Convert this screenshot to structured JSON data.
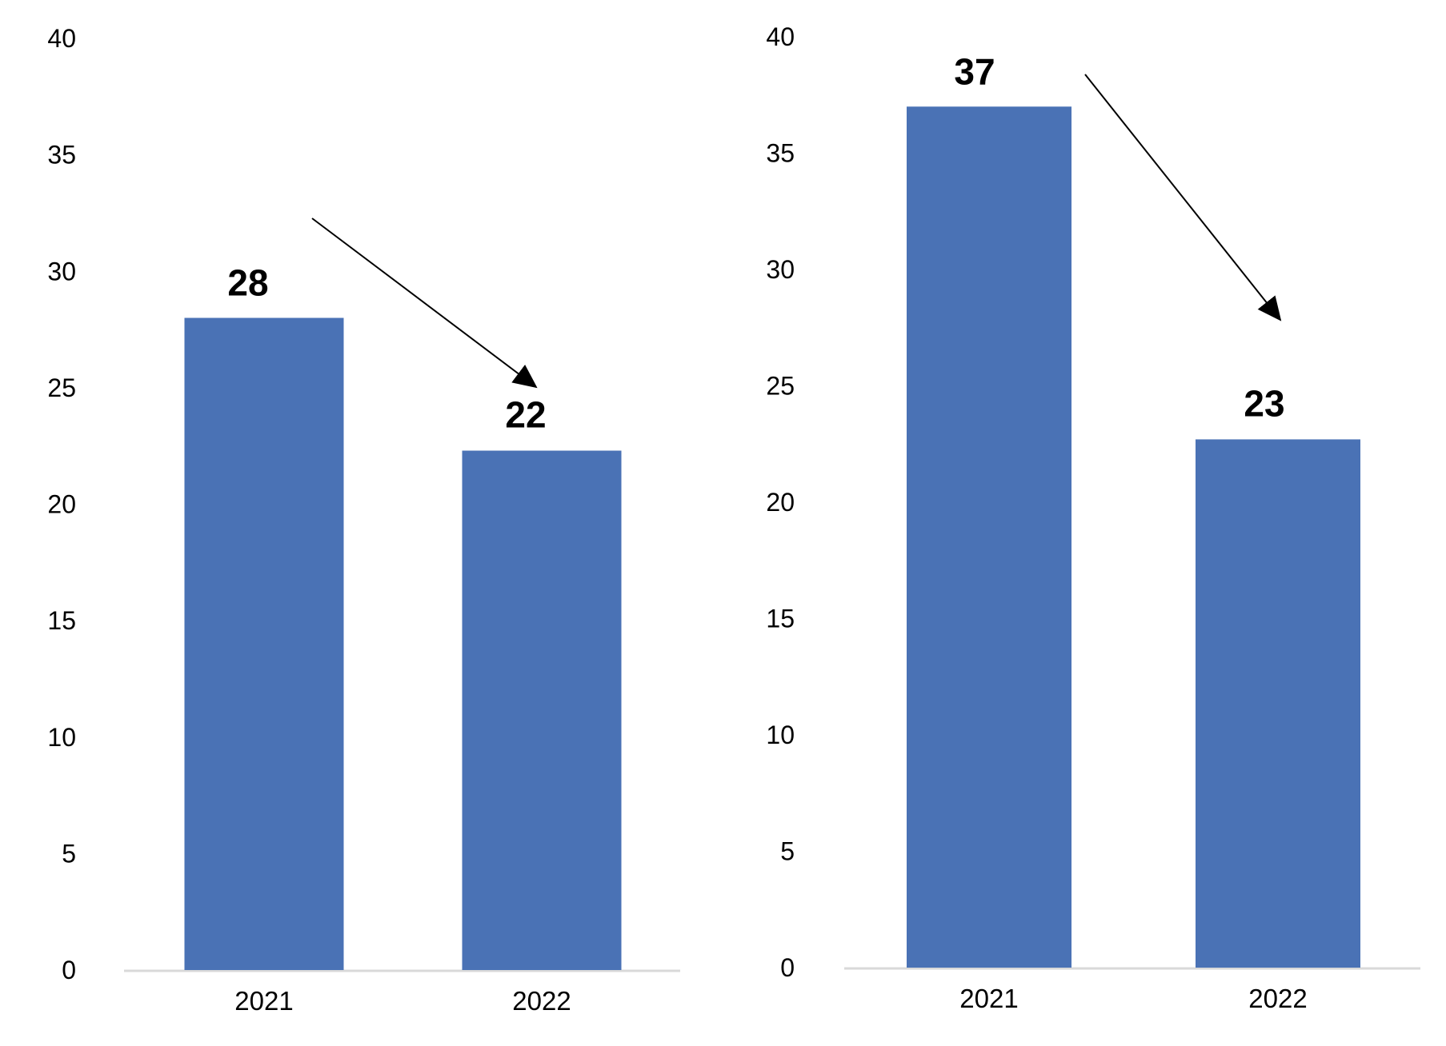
{
  "chart_data": [
    {
      "type": "bar",
      "categories": [
        "2021",
        "2022"
      ],
      "values": [
        28,
        22.3
      ],
      "data_labels": [
        "28",
        "22"
      ],
      "yticks": [
        "0",
        "5",
        "10",
        "15",
        "20",
        "25",
        "30",
        "35",
        "40"
      ],
      "ylim": [
        0,
        40
      ],
      "grid": false,
      "legend": "none",
      "bar_color": "#4a72b5",
      "annotation": "downward trend arrow from 2021 to 2022"
    },
    {
      "type": "bar",
      "categories": [
        "2021",
        "2022"
      ],
      "values": [
        37,
        22.7
      ],
      "data_labels": [
        "37",
        "23"
      ],
      "yticks": [
        "0",
        "5",
        "10",
        "15",
        "20",
        "25",
        "30",
        "35",
        "40"
      ],
      "ylim": [
        0,
        40
      ],
      "grid": false,
      "legend": "none",
      "bar_color": "#4a72b5",
      "annotation": "downward trend arrow from 2021 to 2022"
    }
  ]
}
